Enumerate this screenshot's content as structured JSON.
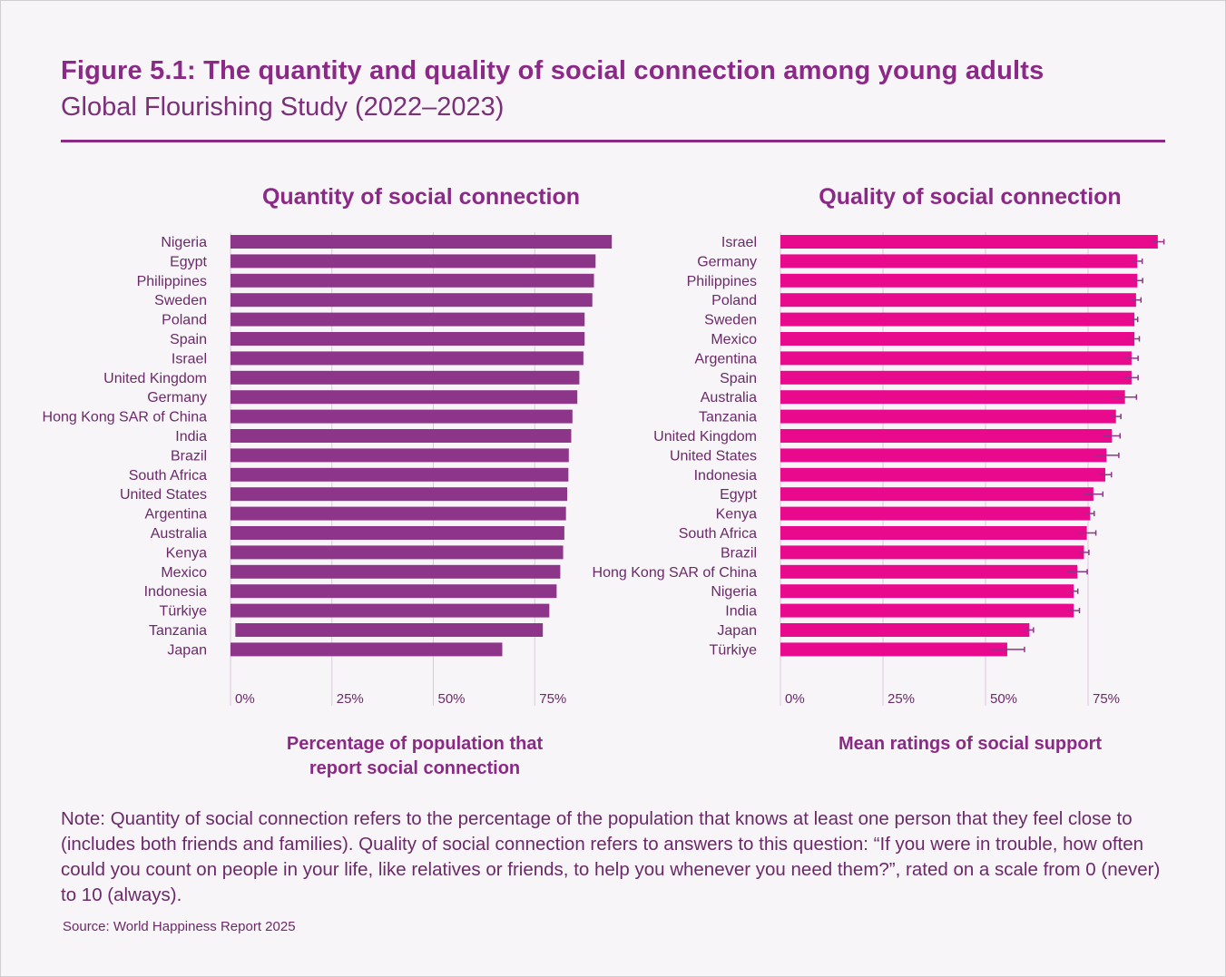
{
  "header": {
    "title": "Figure 5.1: The quantity and quality of social connection among young adults",
    "subtitle": "Global Flourishing Study (2022–2023)"
  },
  "chart_data": [
    {
      "type": "bar",
      "orientation": "horizontal",
      "title": "Quantity of social connection",
      "xlabel_lines": [
        "Percentage of population that",
        "report social connection"
      ],
      "xlim": [
        0,
        100
      ],
      "tick_labels": [
        "0%",
        "25%",
        "50%",
        "75%"
      ],
      "tick_values": [
        0,
        25,
        50,
        75
      ],
      "color": "#8c3589",
      "categories": [
        "Nigeria",
        "Egypt",
        "Philippines",
        "Sweden",
        "Poland",
        "Spain",
        "Israel",
        "United Kingdom",
        "Germany",
        "Hong Kong SAR of China",
        "India",
        "Brazil",
        "South Africa",
        "United States",
        "Argentina",
        "Australia",
        "Kenya",
        "Mexico",
        "Indonesia",
        "Türkiye",
        "Tanzania",
        "Japan"
      ],
      "values": [
        94,
        90,
        89.6,
        89.2,
        87.3,
        87.3,
        87,
        86,
        85.5,
        84.3,
        84,
        83.4,
        83.3,
        83,
        82.7,
        82.3,
        82,
        81.3,
        80.4,
        78.6,
        77,
        67
      ],
      "start_values": [
        0,
        0,
        0,
        0,
        0,
        0,
        0,
        0,
        0,
        0,
        0,
        0,
        0,
        0,
        0,
        0,
        0,
        0,
        0,
        0,
        1.2,
        0
      ]
    },
    {
      "type": "bar",
      "orientation": "horizontal",
      "title": "Quality of social connection",
      "xlabel_lines": [
        "Mean ratings of social support"
      ],
      "xlim": [
        0,
        100
      ],
      "tick_labels": [
        "0%",
        "25%",
        "50%",
        "75%"
      ],
      "tick_values": [
        0,
        25,
        50,
        75
      ],
      "color": "#e8098c",
      "error_bar_color": "#8c3589",
      "categories": [
        "Israel",
        "Germany",
        "Philippines",
        "Poland",
        "Sweden",
        "Mexico",
        "Argentina",
        "Spain",
        "Australia",
        "Tanzania",
        "United Kingdom",
        "United States",
        "Indonesia",
        "Egypt",
        "Kenya",
        "South Africa",
        "Brazil",
        "Hong Kong SAR of China",
        "Nigeria",
        "India",
        "Japan",
        "Türkiye"
      ],
      "values": [
        92,
        87,
        87,
        86.7,
        86.3,
        86.3,
        85.6,
        85.6,
        84,
        81.8,
        80.8,
        79.5,
        79.2,
        76.3,
        75.5,
        74.7,
        74,
        72.4,
        71.5,
        71.5,
        60.7,
        55.3
      ],
      "errors": [
        1.5,
        1.2,
        1.3,
        1.2,
        0.8,
        1.2,
        1.6,
        1.6,
        2.8,
        1.2,
        2.0,
        3.0,
        1.5,
        2.3,
        1.0,
        2.2,
        1.2,
        2.4,
        1.0,
        1.4,
        1.0,
        4.2
      ]
    }
  ],
  "note": "Note: Quantity of social connection refers to the percentage of the population that knows at least one person that they feel close to (includes both friends and families). Quality of social connection refers to answers to this question: “If you were in trouble, how often could you count on people in your life, like relatives or friends, to help you whenever you need them?”, rated on a scale from 0 (never) to 10 (always).",
  "source": "Source: World Happiness Report 2025"
}
